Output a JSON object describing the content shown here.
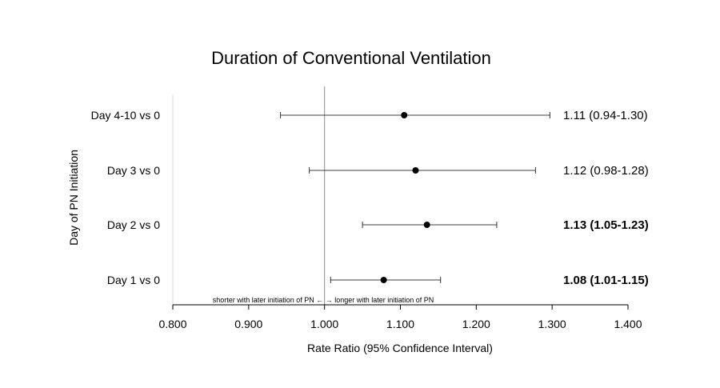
{
  "chart_data": {
    "type": "forest",
    "title": "Duration of Conventional Ventilation",
    "xlabel": "Rate Ratio (95% Confidence Interval)",
    "ylabel": "Day of PN Initiation",
    "xlim": [
      0.8,
      1.4
    ],
    "x_ticks": [
      "0.800",
      "0.900",
      "1.000",
      "1.100",
      "1.200",
      "1.300",
      "1.400"
    ],
    "reference_line": 1.0,
    "annotation": "shorter with later initiation of PN ← → longer with later initiation of PN",
    "rows": [
      {
        "label": "Day 4-10 vs 0",
        "estimate": 1.105,
        "lower": 0.942,
        "upper": 1.297,
        "ci_text": "1.11 (0.94-1.30)",
        "bold": false
      },
      {
        "label": "Day 3 vs 0",
        "estimate": 1.12,
        "lower": 0.98,
        "upper": 1.278,
        "ci_text": "1.12 (0.98-1.28)",
        "bold": false
      },
      {
        "label": "Day 2 vs 0",
        "estimate": 1.135,
        "lower": 1.05,
        "upper": 1.227,
        "ci_text": "1.13 (1.05-1.23)",
        "bold": true
      },
      {
        "label": "Day 1 vs 0",
        "estimate": 1.078,
        "lower": 1.008,
        "upper": 1.153,
        "ci_text": "1.08 (1.01-1.15)",
        "bold": true
      }
    ],
    "grid": false,
    "colors": {
      "marker": "#000000",
      "line": "#000000",
      "reference": "#8c8c8c"
    }
  }
}
